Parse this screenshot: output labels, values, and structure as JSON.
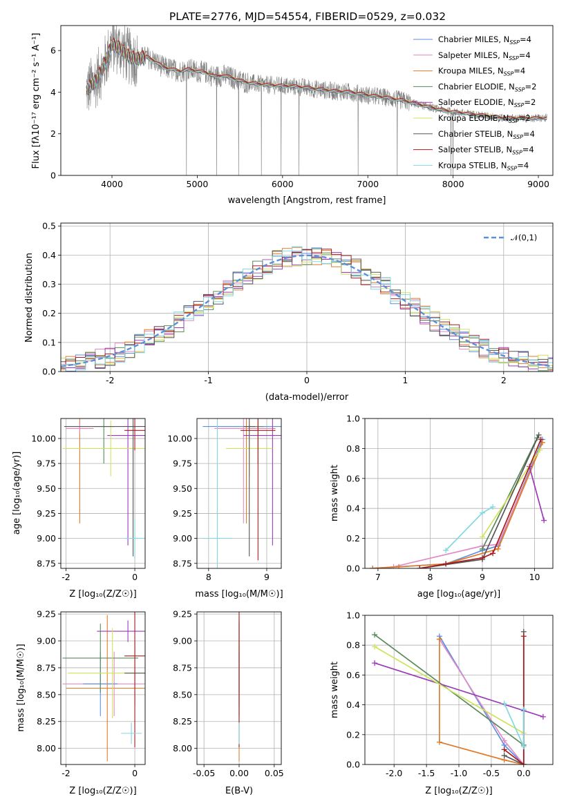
{
  "title": "PLATE=2776, MJD=54554, FIBERID=0529, z=0.032",
  "colors": {
    "Chabrier MILES": "#5b8fe0",
    "Salpeter MILES": "#e18bc4",
    "Kroupa MILES": "#e07b2a",
    "Chabrier ELODIE": "#5a8a5a",
    "Salpeter ELODIE": "#9b3ab8",
    "Kroupa ELODIE": "#cfe35a",
    "Chabrier STELIB": "#555555",
    "Salpeter STELIB": "#a61c1c",
    "Kroupa STELIB": "#82d8df",
    "data": "#808080",
    "normal": "#5b8fd6"
  },
  "chart_data": [
    {
      "id": "spectrum",
      "type": "line",
      "title": "PLATE=2776, MJD=54554, FIBERID=0529, z=0.032",
      "xlabel": "wavelength [Angstrom, rest frame]",
      "ylabel": "Flux [fλ10⁻¹⁷ erg cm⁻² s⁻¹ A⁻¹]",
      "xlim": [
        3400,
        9170
      ],
      "ylim": [
        0,
        7.2
      ],
      "xticks": [
        4000,
        5000,
        6000,
        7000,
        8000,
        9000
      ],
      "yticks": [
        0,
        2,
        4,
        6
      ],
      "continuum": {
        "x": [
          3700,
          3800,
          3900,
          4000,
          4100,
          4200,
          4300,
          4400,
          4500,
          4600,
          4700,
          4800,
          4900,
          5000,
          5100,
          5200,
          5300,
          5400,
          5500,
          5600,
          5800,
          6000,
          6200,
          6400,
          6600,
          6800,
          7000,
          7200,
          7400,
          7600,
          7800,
          8000,
          8200,
          8400,
          8600,
          8800,
          9000,
          9100
        ],
        "y": [
          4.1,
          4.5,
          5.2,
          6.3,
          6.1,
          5.7,
          5.6,
          5.7,
          5.5,
          5.2,
          5.1,
          5.0,
          5.1,
          5.0,
          4.95,
          4.75,
          4.8,
          4.7,
          4.55,
          4.45,
          4.35,
          4.3,
          4.25,
          4.15,
          4.05,
          4.0,
          3.85,
          3.75,
          3.6,
          3.4,
          3.2,
          3.05,
          2.95,
          2.85,
          2.75,
          2.75,
          2.75,
          2.75
        ]
      },
      "legend": [
        {
          "name": "Chabrier MILES",
          "nssp": "4"
        },
        {
          "name": "Salpeter MILES",
          "nssp": "4"
        },
        {
          "name": "Kroupa MILES",
          "nssp": "4"
        },
        {
          "name": "Chabrier ELODIE",
          "nssp": "2"
        },
        {
          "name": "Salpeter ELODIE",
          "nssp": "2"
        },
        {
          "name": "Kroupa ELODIE",
          "nssp": "2"
        },
        {
          "name": "Chabrier STELIB",
          "nssp": "4"
        },
        {
          "name": "Salpeter STELIB",
          "nssp": "4"
        },
        {
          "name": "Kroupa STELIB",
          "nssp": "4"
        }
      ],
      "legend_prefix": "N",
      "legend_sub": "SSP",
      "legend_placement": "upper-right"
    },
    {
      "id": "residuals",
      "type": "line",
      "xlabel": "(data-model)/error",
      "ylabel": "Normed distribution",
      "xlim": [
        -2.5,
        2.5
      ],
      "ylim": [
        0,
        0.51
      ],
      "xticks": [
        -2,
        -1,
        0,
        1,
        2
      ],
      "yticks": [
        0.0,
        0.1,
        0.2,
        0.3,
        0.4,
        0.5
      ],
      "grid": true,
      "legend": [
        "𝒩(0,1)"
      ],
      "legend_placement": "upper-right"
    },
    {
      "id": "age-vs-Z",
      "type": "scatter",
      "xlabel": "Z [log₁₀(Z/Z☉)]",
      "ylabel": "age  [log₁₀(age/yr)]",
      "xlim": [
        -2.15,
        0.3
      ],
      "ylim": [
        8.7,
        10.2
      ],
      "xticks": [
        -2,
        0
      ],
      "yticks": [
        8.75,
        9.0,
        9.25,
        9.5,
        9.75,
        10.0
      ],
      "grid": true
    },
    {
      "id": "age-vs-mass",
      "type": "scatter",
      "xlabel": "mass [log₁₀(M/M☉)]",
      "xlim": [
        7.8,
        9.25
      ],
      "ylim": [
        8.7,
        10.2
      ],
      "xticks": [
        8,
        9
      ],
      "yticks": [
        8.75,
        9.0,
        9.25,
        9.5,
        9.75,
        10.0
      ],
      "grid": true
    },
    {
      "id": "weight-vs-age",
      "type": "line",
      "xlabel": "age  [log₁₀(age/yr)]",
      "ylabel": "mass weight",
      "xlim": [
        6.75,
        10.35
      ],
      "ylim": [
        0,
        1.0
      ],
      "xticks": [
        7,
        8,
        9,
        10
      ],
      "yticks": [
        0.0,
        0.2,
        0.4,
        0.6,
        0.8,
        1.0
      ],
      "grid": true,
      "series": [
        {
          "name": "Chabrier MILES",
          "x": [
            6.9,
            8.3,
            9.0,
            9.3,
            10.15
          ],
          "y": [
            0.0,
            0.03,
            0.12,
            0.15,
            0.86
          ]
        },
        {
          "name": "Salpeter MILES",
          "x": [
            6.9,
            7.3,
            9.0,
            9.3,
            10.15
          ],
          "y": [
            0.0,
            0.01,
            0.15,
            0.16,
            0.84
          ]
        },
        {
          "name": "Kroupa MILES",
          "x": [
            6.9,
            7.4,
            8.3,
            9.3,
            10.15
          ],
          "y": [
            0.0,
            0.01,
            0.03,
            0.13,
            0.84
          ]
        },
        {
          "name": "Chabrier ELODIE",
          "x": [
            9.0,
            10.05
          ],
          "y": [
            0.13,
            0.87
          ]
        },
        {
          "name": "Salpeter ELODIE",
          "x": [
            9.9,
            10.18
          ],
          "y": [
            0.68,
            0.32
          ]
        },
        {
          "name": "Kroupa ELODIE",
          "x": [
            9.0,
            10.1
          ],
          "y": [
            0.21,
            0.79
          ]
        },
        {
          "name": "Chabrier STELIB",
          "x": [
            7.8,
            9.0,
            10.08
          ],
          "y": [
            0.0,
            0.06,
            0.89
          ]
        },
        {
          "name": "Salpeter STELIB",
          "x": [
            7.8,
            8.3,
            9.0,
            9.2,
            10.12
          ],
          "y": [
            0.0,
            0.03,
            0.07,
            0.1,
            0.86
          ]
        },
        {
          "name": "Kroupa STELIB",
          "x": [
            8.3,
            9.0,
            9.2
          ],
          "y": [
            0.12,
            0.37,
            0.41
          ]
        }
      ]
    },
    {
      "id": "mass-vs-Z",
      "type": "scatter",
      "xlabel": "Z [log₁₀(Z/Z☉)]",
      "ylabel": "mass [log₁₀(M/M☉)]",
      "xlim": [
        -2.15,
        0.3
      ],
      "ylim": [
        7.85,
        9.27
      ],
      "xticks": [
        -2,
        0
      ],
      "yticks": [
        8.0,
        8.25,
        8.5,
        8.75,
        9.0,
        9.25
      ],
      "grid": true
    },
    {
      "id": "mass-vs-ebv",
      "type": "scatter",
      "xlabel": "E(B-V)",
      "xlim": [
        -0.06,
        0.06
      ],
      "ylim": [
        7.85,
        9.27
      ],
      "xticks": [
        -0.05,
        0.0,
        0.05
      ],
      "yticks": [
        8.0,
        8.25,
        8.5,
        8.75,
        9.0,
        9.25
      ],
      "grid": true
    },
    {
      "id": "weight-vs-Z",
      "type": "line",
      "xlabel": "Z [log₁₀(Z/Z☉)]",
      "ylabel": "mass weight",
      "xlim": [
        -2.45,
        0.45
      ],
      "ylim": [
        0,
        1.0
      ],
      "xticks": [
        -2.0,
        -1.5,
        -1.0,
        -0.5,
        0.0
      ],
      "yticks": [
        0.0,
        0.2,
        0.4,
        0.6,
        0.8,
        1.0
      ],
      "grid": true,
      "series": [
        {
          "name": "Chabrier MILES",
          "x": [
            -1.3,
            -0.3,
            0.0,
            0.0
          ],
          "y": [
            0.86,
            0.13,
            0.0,
            0.36
          ]
        },
        {
          "name": "Salpeter MILES",
          "x": [
            -1.3,
            -0.3,
            0.0,
            0.0
          ],
          "y": [
            0.84,
            0.16,
            0.0,
            0.0
          ]
        },
        {
          "name": "Kroupa MILES",
          "x": [
            -1.3,
            -1.3,
            -0.3,
            0.0
          ],
          "y": [
            0.84,
            0.15,
            0.03,
            0.0
          ]
        },
        {
          "name": "Chabrier ELODIE",
          "x": [
            -2.3,
            0.0
          ],
          "y": [
            0.87,
            0.13
          ]
        },
        {
          "name": "Salpeter ELODIE",
          "x": [
            -2.3,
            0.3
          ],
          "y": [
            0.68,
            0.32
          ]
        },
        {
          "name": "Kroupa ELODIE",
          "x": [
            -2.3,
            0.0
          ],
          "y": [
            0.79,
            0.21
          ]
        },
        {
          "name": "Chabrier STELIB",
          "x": [
            -0.3,
            0.0,
            0.0
          ],
          "y": [
            0.06,
            0.0,
            0.89
          ]
        },
        {
          "name": "Salpeter STELIB",
          "x": [
            -0.3,
            0.0,
            0.0
          ],
          "y": [
            0.1,
            0.0,
            0.86
          ]
        },
        {
          "name": "Kroupa STELIB",
          "x": [
            -0.3,
            0.0,
            0.0
          ],
          "y": [
            0.41,
            0.12,
            0.37
          ]
        }
      ]
    }
  ]
}
